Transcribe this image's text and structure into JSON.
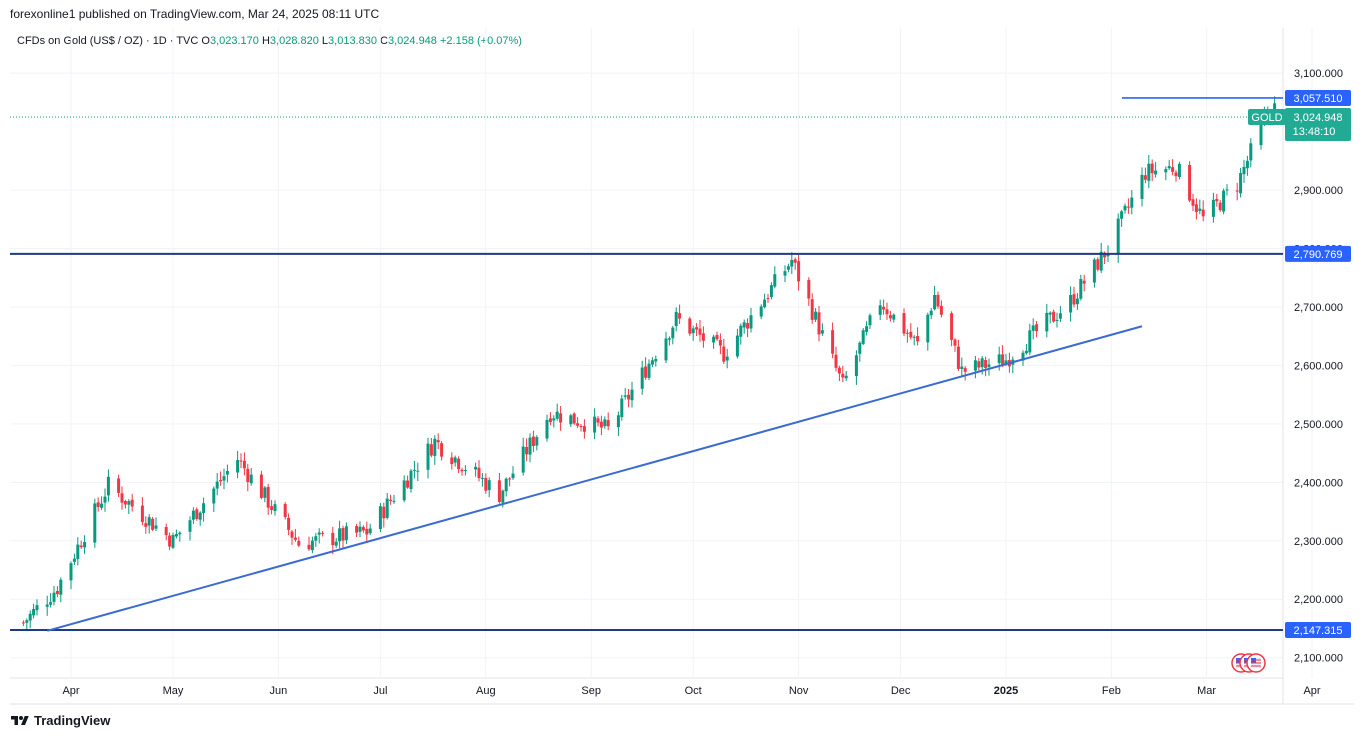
{
  "header": {
    "published": "forexonline1 published on TradingView.com, Mar 24, 2025 08:11 UTC"
  },
  "legend": {
    "symbol": "CFDs on Gold (US$ / OZ) · 1D · TVC",
    "open_label": "O",
    "open": "3,023.170",
    "high_label": "H",
    "high": "3,028.820",
    "low_label": "L",
    "low": "3,013.830",
    "close_label": "C",
    "close": "3,024.948",
    "change": "+2.158 (+0.07%)"
  },
  "price_badge": {
    "symbol": "GOLD",
    "price": "3,024.948",
    "countdown": "13:48:10"
  },
  "footer": {
    "brand": "TradingView"
  },
  "colors": {
    "up": "#089981",
    "down": "#f23645",
    "line": "#2962ff",
    "hline": "#1e3a8a",
    "badge": "#22ab94",
    "trend": "#3a6bd1"
  },
  "chart_data": {
    "type": "candlestick",
    "y_ticks": [
      "3,100.000",
      "2,900.000",
      "2,800.000",
      "2,700.000",
      "2,600.000",
      "2,500.000",
      "2,400.000",
      "2,300.000",
      "2,200.000",
      "2,100.000"
    ],
    "y_tick_values": [
      3100,
      2900,
      2800,
      2700,
      2600,
      2500,
      2400,
      2300,
      2200,
      2100
    ],
    "x_ticks": [
      {
        "label": "Apr",
        "date": "2024-04-01"
      },
      {
        "label": "May",
        "date": "2024-05-01"
      },
      {
        "label": "Jun",
        "date": "2024-06-01"
      },
      {
        "label": "Jul",
        "date": "2024-07-01"
      },
      {
        "label": "Aug",
        "date": "2024-08-01"
      },
      {
        "label": "Sep",
        "date": "2024-09-01"
      },
      {
        "label": "Oct",
        "date": "2024-10-01"
      },
      {
        "label": "Nov",
        "date": "2024-11-01"
      },
      {
        "label": "Dec",
        "date": "2024-12-01"
      },
      {
        "label": "2025",
        "date": "2025-01-01"
      },
      {
        "label": "Feb",
        "date": "2025-02-01"
      },
      {
        "label": "Mar",
        "date": "2025-03-01"
      },
      {
        "label": "Apr",
        "date": "2025-04-01"
      }
    ],
    "horizontal_lines": [
      {
        "label": "3,057.510",
        "value": 3057.51
      },
      {
        "label": "2,790.769",
        "value": 2790.769
      },
      {
        "label": "2,147.315",
        "value": 2147.315
      }
    ],
    "trendlines": [
      {
        "from": {
          "date": "2024-03-25",
          "value": 2146
        },
        "to": {
          "date": "2025-02-10",
          "value": 2667
        }
      }
    ],
    "key_closes": [
      {
        "date": "2024-03-18",
        "value": 2160
      },
      {
        "date": "2024-03-28",
        "value": 2220
      },
      {
        "date": "2024-04-12",
        "value": 2395
      },
      {
        "date": "2024-05-01",
        "value": 2300
      },
      {
        "date": "2024-05-20",
        "value": 2440
      },
      {
        "date": "2024-06-07",
        "value": 2295
      },
      {
        "date": "2024-06-27",
        "value": 2315
      },
      {
        "date": "2024-07-17",
        "value": 2470
      },
      {
        "date": "2024-08-05",
        "value": 2380
      },
      {
        "date": "2024-08-20",
        "value": 2520
      },
      {
        "date": "2024-09-06",
        "value": 2490
      },
      {
        "date": "2024-09-26",
        "value": 2680
      },
      {
        "date": "2024-10-10",
        "value": 2620
      },
      {
        "date": "2024-10-30",
        "value": 2780
      },
      {
        "date": "2024-11-14",
        "value": 2565
      },
      {
        "date": "2024-11-25",
        "value": 2710
      },
      {
        "date": "2024-12-06",
        "value": 2635
      },
      {
        "date": "2024-12-11",
        "value": 2720
      },
      {
        "date": "2024-12-19",
        "value": 2590
      },
      {
        "date": "2025-01-01",
        "value": 2610
      },
      {
        "date": "2025-01-20",
        "value": 2710
      },
      {
        "date": "2025-01-31",
        "value": 2800
      },
      {
        "date": "2025-02-11",
        "value": 2930
      },
      {
        "date": "2025-02-20",
        "value": 2940
      },
      {
        "date": "2025-02-28",
        "value": 2850
      },
      {
        "date": "2025-03-10",
        "value": 2910
      },
      {
        "date": "2025-03-20",
        "value": 3045
      },
      {
        "date": "2025-03-24",
        "value": 3025
      }
    ]
  }
}
